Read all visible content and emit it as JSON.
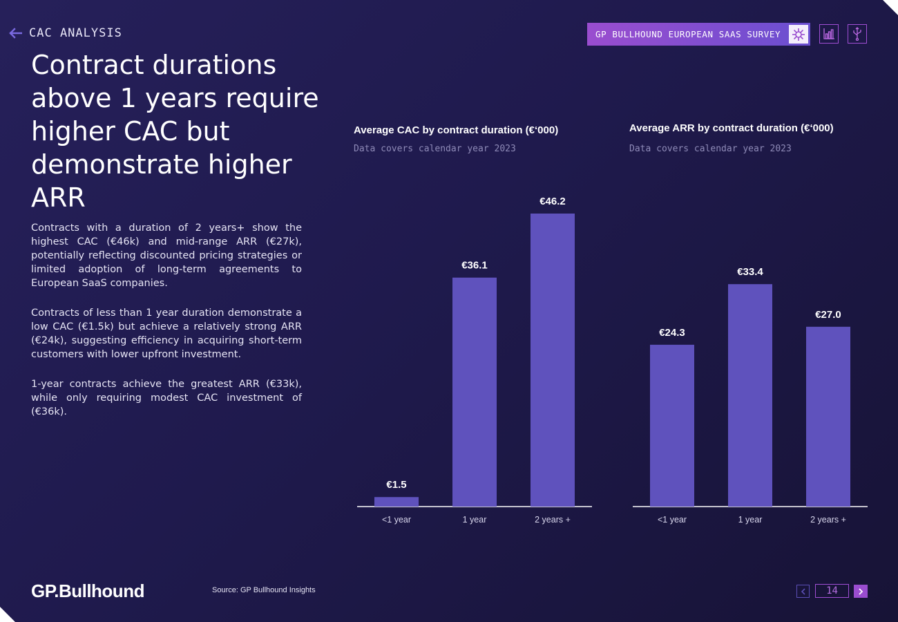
{
  "header": {
    "section": "CAC ANALYSIS",
    "survey_button": "GP BULLHOUND EUROPEAN SAAS SURVEY"
  },
  "headline": "Contract durations above 1 years require higher CAC but demonstrate higher ARR",
  "body": [
    "Contracts with a duration of 2 years+ show the highest CAC (€46k) and mid-range ARR (€27k), potentially reflecting discounted pricing strategies or limited adoption of long-term agreements to European SaaS companies.",
    "Contracts of less than 1 year duration demonstrate a low CAC (€1.5k) but achieve a relatively strong ARR (€24k), suggesting efficiency in acquiring short-term customers with lower upfront investment.",
    "1-year contracts achieve the greatest ARR (€33k), while only requiring modest CAC investment of (€36k)."
  ],
  "chart_data": [
    {
      "type": "bar",
      "title": "Average CAC by contract duration (€‘000)",
      "subtitle": "Data covers calendar year 2023",
      "categories": [
        "<1 year",
        "1 year",
        "2 years +"
      ],
      "values": [
        1.5,
        36.1,
        46.2
      ],
      "value_labels": [
        "€1.5",
        "€36.1",
        "€46.2"
      ],
      "ylim": [
        0,
        46.2
      ],
      "bar_color": "#5f52bd",
      "grid": false
    },
    {
      "type": "bar",
      "title": "Average ARR by contract duration (€‘000)",
      "subtitle": "Data covers calendar year 2023",
      "categories": [
        "<1 year",
        "1 year",
        "2 years +"
      ],
      "values": [
        24.3,
        33.4,
        27.0
      ],
      "value_labels": [
        "€24.3",
        "€33.4",
        "€27.0"
      ],
      "ylim": [
        0,
        44
      ],
      "bar_color": "#5f52bd",
      "grid": false
    }
  ],
  "footer": {
    "logo": "GP.Bullhound",
    "source": "Source: GP Bullhound Insights",
    "page_number": "14"
  },
  "colors": {
    "accent": "#9a4dcf",
    "bar": "#5f52bd",
    "background": "#221c52"
  },
  "icons": {
    "back": "arrow-left-icon",
    "survey": "network-icon",
    "chart": "bar-chart-icon",
    "download": "usb-icon",
    "prev": "chevron-left-icon",
    "next": "chevron-right-icon"
  }
}
